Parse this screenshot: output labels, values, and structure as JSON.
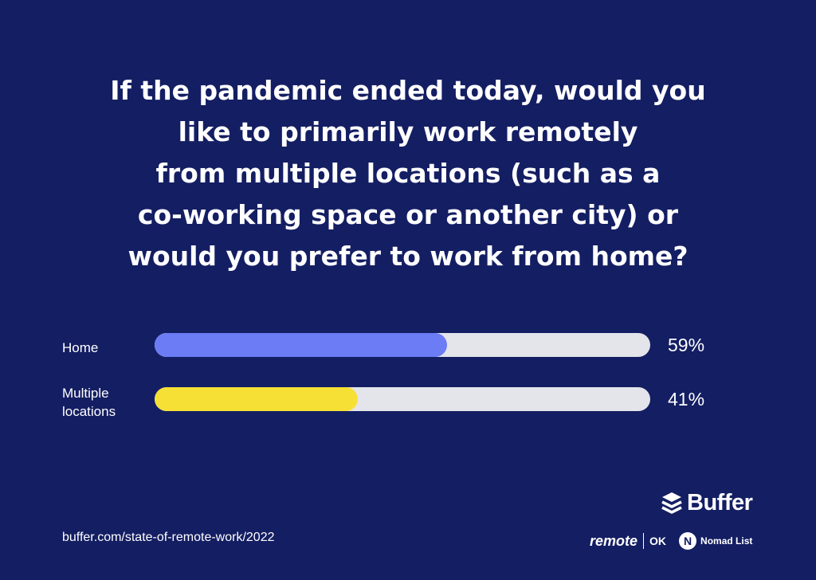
{
  "title_lines": [
    "If the pandemic ended today, would you",
    "like to primarily work remotely",
    "from multiple locations (such as a",
    "co-working space or another city) or",
    "would you prefer to work from home?"
  ],
  "chart_data": {
    "type": "bar",
    "orientation": "horizontal",
    "categories": [
      "Home",
      "Multiple\nlocations"
    ],
    "values": [
      59,
      41
    ],
    "value_labels": [
      "59%",
      "41%"
    ],
    "unit": "%",
    "xlim": [
      0,
      100
    ],
    "grid": false,
    "colors": [
      "#6b7cf5",
      "#f7e035"
    ],
    "track_color": "#e4e5ea"
  },
  "footer": {
    "url": "buffer.com/state-of-remote-work/2022",
    "brand": "Buffer",
    "partner_1": "remote",
    "partner_1_suffix": "OK",
    "partner_2_mark": "N",
    "partner_2": "Nomad List"
  },
  "colors": {
    "background": "#141e63",
    "text": "#ffffff"
  },
  "icons": [
    "buffer-logo-icon",
    "nomad-list-logo-icon"
  ]
}
